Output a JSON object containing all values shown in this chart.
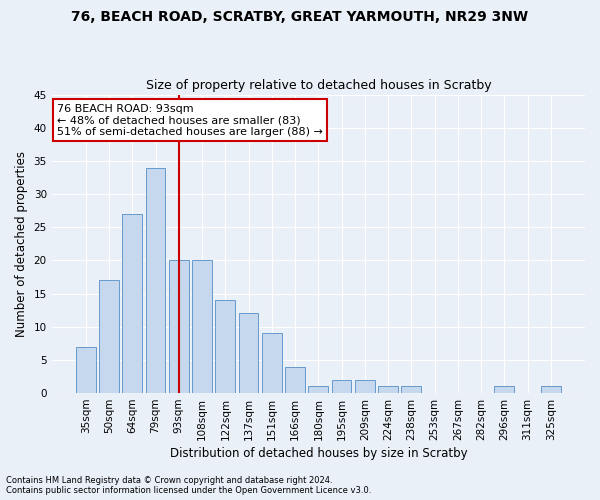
{
  "title1": "76, BEACH ROAD, SCRATBY, GREAT YARMOUTH, NR29 3NW",
  "title2": "Size of property relative to detached houses in Scratby",
  "xlabel": "Distribution of detached houses by size in Scratby",
  "ylabel": "Number of detached properties",
  "categories": [
    "35sqm",
    "50sqm",
    "64sqm",
    "79sqm",
    "93sqm",
    "108sqm",
    "122sqm",
    "137sqm",
    "151sqm",
    "166sqm",
    "180sqm",
    "195sqm",
    "209sqm",
    "224sqm",
    "238sqm",
    "253sqm",
    "267sqm",
    "282sqm",
    "296sqm",
    "311sqm",
    "325sqm"
  ],
  "values": [
    7,
    17,
    27,
    34,
    20,
    20,
    14,
    12,
    9,
    4,
    1,
    2,
    2,
    1,
    1,
    0,
    0,
    0,
    1,
    0,
    1
  ],
  "bar_color": "#c5d8ed",
  "bar_edge_color": "#6699cc",
  "vline_index": 4,
  "vline_color": "#cc0000",
  "annotation_text": "76 BEACH ROAD: 93sqm\n← 48% of detached houses are smaller (83)\n51% of semi-detached houses are larger (88) →",
  "annotation_box_color": "#ffffff",
  "annotation_box_edge": "#cc0000",
  "ylim": [
    0,
    45
  ],
  "yticks": [
    0,
    5,
    10,
    15,
    20,
    25,
    30,
    35,
    40,
    45
  ],
  "footer1": "Contains HM Land Registry data © Crown copyright and database right 2024.",
  "footer2": "Contains public sector information licensed under the Open Government Licence v3.0.",
  "bg_color": "#eaf0f8",
  "plot_bg_color": "#eaf0f8",
  "title1_fontsize": 10,
  "title2_fontsize": 9,
  "tick_fontsize": 7.5,
  "ylabel_fontsize": 8.5,
  "xlabel_fontsize": 8.5,
  "footer_fontsize": 6,
  "annot_fontsize": 8
}
